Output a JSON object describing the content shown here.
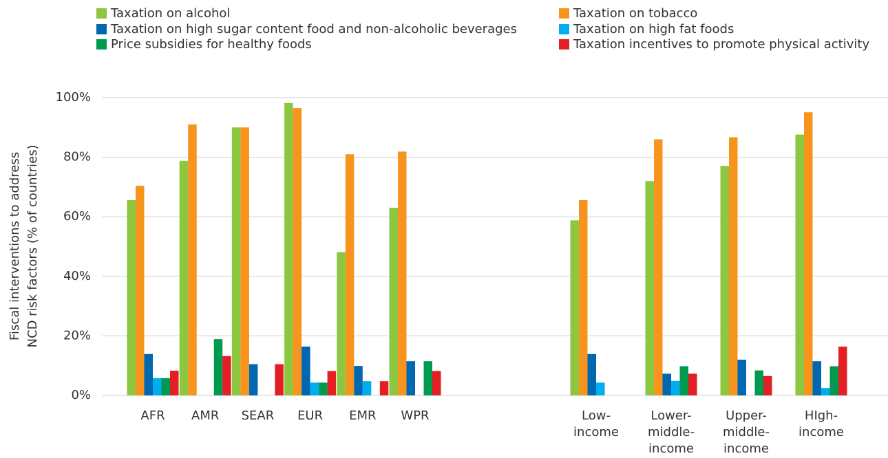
{
  "chart_data": {
    "type": "bar",
    "ylabel": [
      "Fiscal interventions to address",
      "NCD risk factors (% of countries)"
    ],
    "categories": [
      "AFR",
      "AMR",
      "SEAR",
      "EUR",
      "EMR",
      "WPR",
      "Low-\nincome",
      "Lower-\nmiddle-\nincome",
      "Upper-\nmiddle-\nincome",
      "HIgh-\nincome"
    ],
    "series": [
      {
        "name": "Taxation on alcohol",
        "color": "#8dc63f",
        "values": [
          65.6,
          78.8,
          90,
          98.2,
          48.1,
          63,
          58.8,
          72,
          77.1,
          87.6
        ]
      },
      {
        "name": "Taxation on tobacco",
        "color": "#f7941d",
        "values": [
          70.4,
          91,
          90,
          96.5,
          81,
          81.9,
          65.6,
          86,
          86.7,
          95.1
        ]
      },
      {
        "name": "Taxation on high sugar content food and non-alcoholic beverages",
        "color": "#0067b1",
        "values": [
          13.9,
          0,
          10.5,
          16.4,
          9.9,
          11.5,
          13.9,
          7.3,
          12,
          11.5
        ]
      },
      {
        "name": "Taxation on high fat foods",
        "color": "#00aeef",
        "values": [
          5.8,
          0,
          0,
          4.3,
          4.8,
          0,
          4.3,
          4.9,
          0,
          2.5
        ]
      },
      {
        "name": "Price subsidies for healthy foods",
        "color": "#009a4e",
        "values": [
          5.8,
          18.9,
          0,
          4.3,
          0,
          11.5,
          0,
          9.8,
          8.4,
          9.8
        ]
      },
      {
        "name": "Taxation incentives to promote physical activity",
        "color": "#e31e24",
        "values": [
          8.3,
          13.2,
          10.5,
          8.2,
          4.8,
          8.2,
          0,
          7.3,
          6.5,
          16.4
        ]
      }
    ],
    "ylim": [
      0,
      100
    ],
    "yticks": [
      {
        "value": 0,
        "label": "0%"
      },
      {
        "value": 20,
        "label": "20%"
      },
      {
        "value": 40,
        "label": "40%"
      },
      {
        "value": 60,
        "label": "60%"
      },
      {
        "value": 80,
        "label": "80%"
      },
      {
        "value": 100,
        "label": "100%"
      }
    ],
    "grid": true
  }
}
